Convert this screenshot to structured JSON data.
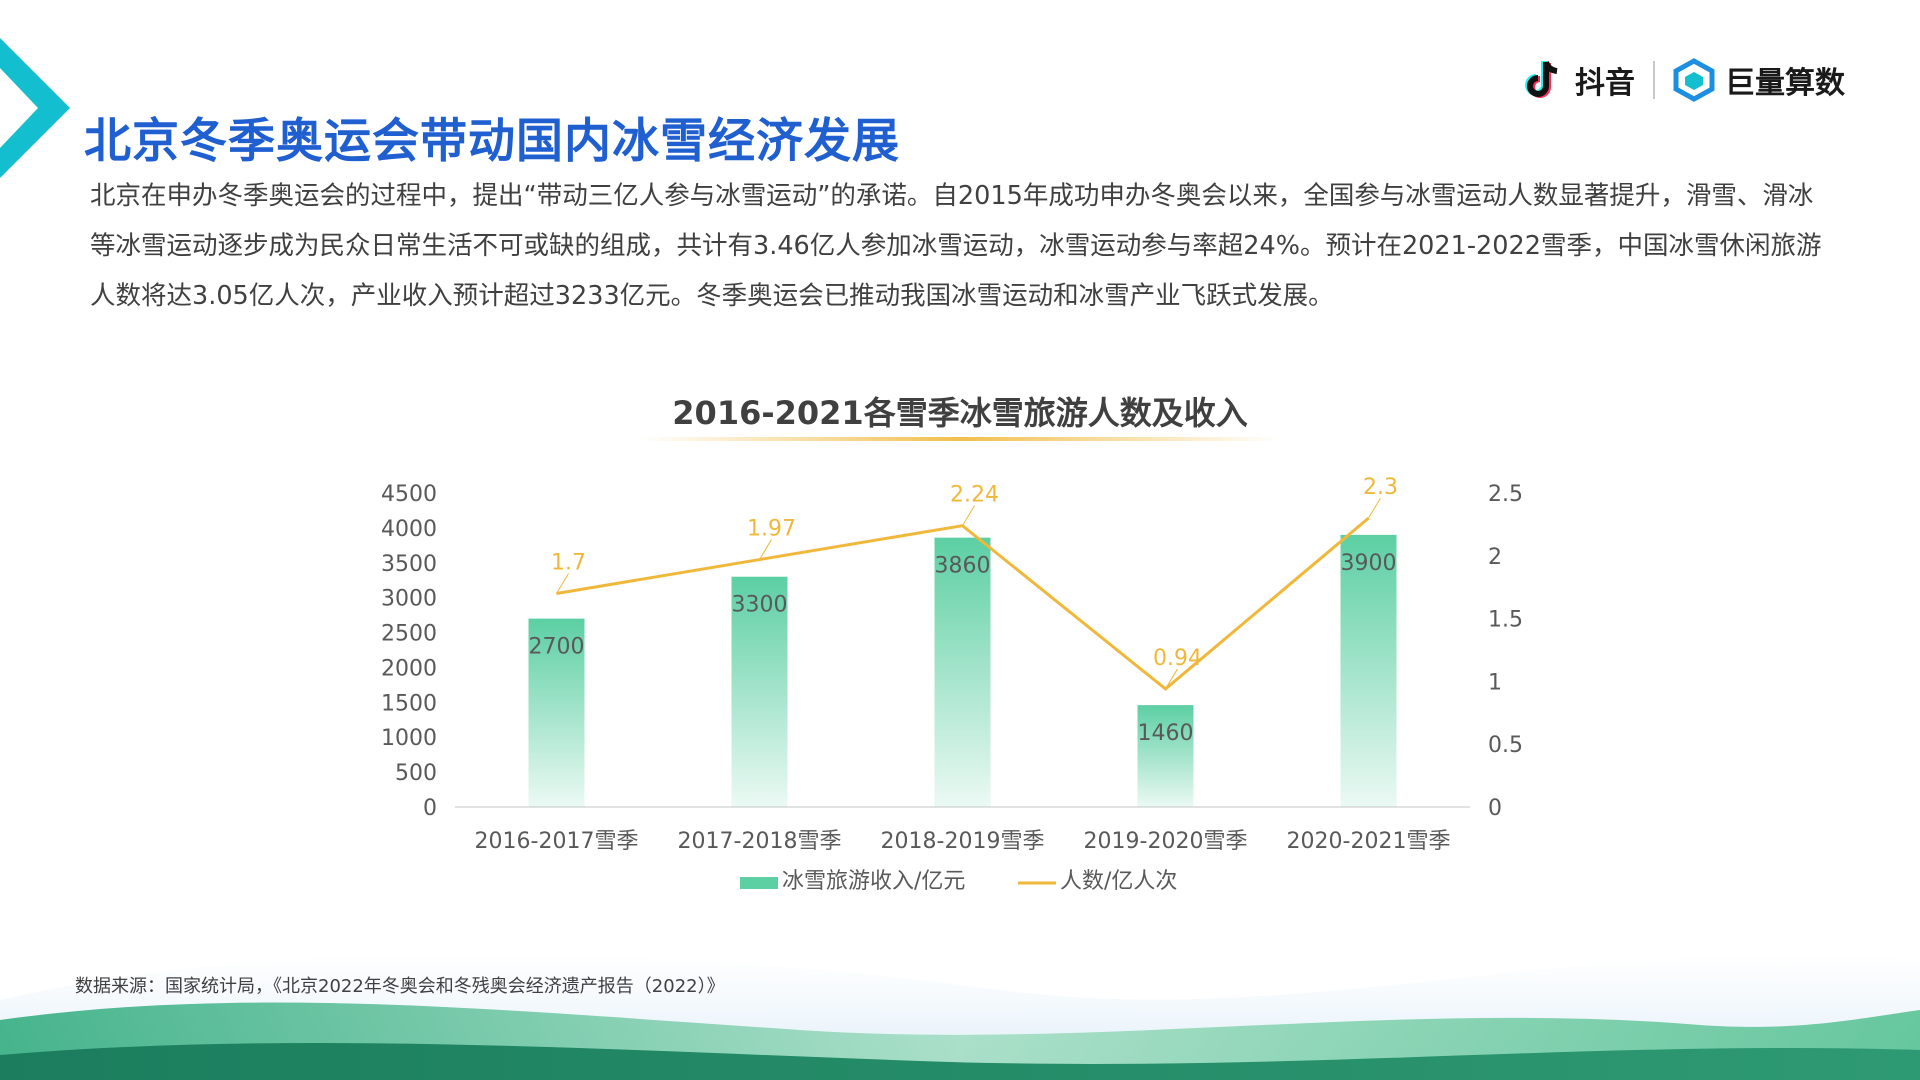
{
  "header": {
    "title": "北京冬季奥运会带动国内冰雪经济发展",
    "brands": [
      {
        "name": "抖音",
        "icon": "douyin-logo-icon"
      },
      {
        "name": "巨量算数",
        "icon": "juliang-suanshu-logo-icon"
      }
    ]
  },
  "intro": {
    "text": "北京在申办冬季奥运会的过程中，提出“带动三亿人参与冰雪运动”的承诺。自2015年成功申办冬奥会以来，全国参与冰雪运动人数显著提升，滑雪、滑冰等冰雪运动逐步成为民众日常生活不可或缺的组成，共计有3.46亿人参加冰雪运动，冰雪运动参与率超24%。预计在2021-2022雪季，中国冰雪休闲旅游人数将达3.05亿人次，产业收入预计超过3233亿元。冬季奥运会已推动我国冰雪运动和冰雪产业飞跃式发展。"
  },
  "colors": {
    "title_blue": "#1f5fd0",
    "accent_teal": "#13bfcf",
    "bar_green": "#5ccfa3",
    "line_yellow": "#f0b83a"
  },
  "chart_data": {
    "type": "bar",
    "title": "2016-2021各雪季冰雪旅游人数及收入",
    "categories": [
      "2016-2017雪季",
      "2017-2018雪季",
      "2018-2019雪季",
      "2019-2020雪季",
      "2020-2021雪季"
    ],
    "series": [
      {
        "name": "冰雪旅游收入/亿元",
        "type": "bar",
        "axis": "left",
        "values": [
          2700,
          3300,
          3860,
          1460,
          3900
        ],
        "labels": [
          "2700",
          "3300",
          "3860",
          "1460",
          "3900"
        ]
      },
      {
        "name": "人数/亿人次",
        "type": "line",
        "axis": "right",
        "values": [
          1.7,
          1.97,
          2.24,
          0.94,
          2.3
        ],
        "labels": [
          "1.7",
          "1.97",
          "2.24",
          "0.94",
          "2.3"
        ]
      }
    ],
    "y_left": {
      "min": 0,
      "max": 4500,
      "ticks": [
        "0",
        "500",
        "1000",
        "1500",
        "2000",
        "2500",
        "3000",
        "3500",
        "4000",
        "4500"
      ]
    },
    "y_right": {
      "min": 0,
      "max": 2.5,
      "ticks": [
        "0",
        "0.5",
        "1",
        "1.5",
        "2",
        "2.5"
      ]
    },
    "grid": false,
    "legend_position": "bottom"
  },
  "footer": {
    "source": "数据来源：国家统计局，《北京2022年冬奥会和冬残奥会经济遗产报告（2022）》"
  }
}
